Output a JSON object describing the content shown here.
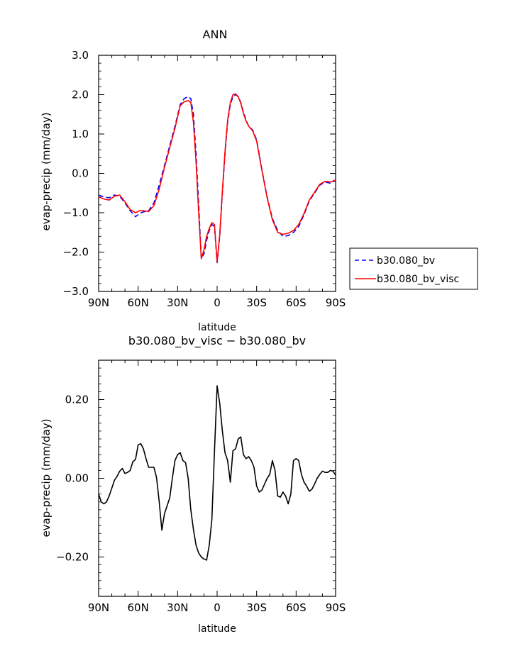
{
  "chart_data": [
    {
      "type": "line",
      "title": "ANN",
      "xlabel": "latitude",
      "ylabel": "evap-precip (mm/day)",
      "xlim": [
        90,
        -90
      ],
      "ylim": [
        -3.0,
        3.0
      ],
      "x_ticks": [
        {
          "value": 90,
          "label": "90N"
        },
        {
          "value": 60,
          "label": "60N"
        },
        {
          "value": 30,
          "label": "30N"
        },
        {
          "value": 0,
          "label": "0"
        },
        {
          "value": -30,
          "label": "30S"
        },
        {
          "value": -60,
          "label": "60S"
        },
        {
          "value": -90,
          "label": "90S"
        }
      ],
      "y_ticks": [
        {
          "value": 3.0,
          "label": "3.0"
        },
        {
          "value": 2.0,
          "label": "2.0"
        },
        {
          "value": 1.0,
          "label": "1.0"
        },
        {
          "value": 0.0,
          "label": "0.0"
        },
        {
          "value": -1.0,
          "label": "−1.0"
        },
        {
          "value": -2.0,
          "label": "−2.0"
        },
        {
          "value": -3.0,
          "label": "−3.0"
        }
      ],
      "grid": false,
      "legend_placement": "right",
      "x": [
        90,
        86,
        82,
        78,
        74,
        70,
        66,
        62,
        59,
        56,
        52,
        48,
        44,
        40,
        36,
        32,
        28,
        25,
        22,
        20,
        18,
        16,
        14,
        12,
        10,
        8,
        6,
        4,
        2,
        0,
        -2,
        -4,
        -6,
        -8,
        -10,
        -12,
        -14,
        -16,
        -18,
        -20,
        -22,
        -24,
        -27,
        -30,
        -34,
        -38,
        -42,
        -46,
        -50,
        -54,
        -58,
        -62,
        -66,
        -70,
        -74,
        -78,
        -82,
        -86,
        -90
      ],
      "series": [
        {
          "name": "b30.080_bv",
          "color": "#0000ff",
          "dash": "dashed",
          "values": [
            -0.55,
            -0.6,
            -0.62,
            -0.55,
            -0.58,
            -0.75,
            -0.95,
            -1.1,
            -1.02,
            -0.98,
            -0.95,
            -0.75,
            -0.3,
            0.2,
            0.7,
            1.2,
            1.75,
            1.9,
            1.95,
            1.9,
            1.5,
            0.5,
            -0.8,
            -2.15,
            -2.05,
            -1.7,
            -1.45,
            -1.3,
            -1.35,
            -2.27,
            -1.6,
            -0.5,
            0.5,
            1.3,
            1.75,
            1.95,
            2.0,
            1.95,
            1.8,
            1.55,
            1.35,
            1.2,
            1.1,
            0.85,
            0.1,
            -0.6,
            -1.15,
            -1.45,
            -1.6,
            -1.58,
            -1.5,
            -1.35,
            -1.05,
            -0.7,
            -0.5,
            -0.3,
            -0.22,
            -0.25,
            -0.18
          ]
        },
        {
          "name": "b30.080_bv_visc",
          "color": "#ff0000",
          "dash": "solid",
          "values": [
            -0.6,
            -0.65,
            -0.68,
            -0.58,
            -0.55,
            -0.72,
            -0.92,
            -1.0,
            -0.95,
            -0.95,
            -0.97,
            -0.82,
            -0.4,
            0.15,
            0.65,
            1.15,
            1.72,
            1.82,
            1.85,
            1.8,
            1.3,
            0.3,
            -1.0,
            -2.17,
            -1.95,
            -1.6,
            -1.4,
            -1.25,
            -1.3,
            -2.25,
            -1.55,
            -0.45,
            0.55,
            1.35,
            1.8,
            2.0,
            2.02,
            1.95,
            1.78,
            1.52,
            1.33,
            1.2,
            1.08,
            0.82,
            0.08,
            -0.62,
            -1.18,
            -1.5,
            -1.55,
            -1.52,
            -1.45,
            -1.3,
            -1.02,
            -0.68,
            -0.48,
            -0.28,
            -0.2,
            -0.22,
            -0.17
          ]
        }
      ]
    },
    {
      "type": "line",
      "title": "b30.080_bv_visc − b30.080_bv",
      "xlabel": "latitude",
      "ylabel": "evap-precip (mm/day)",
      "xlim": [
        90,
        -90
      ],
      "ylim": [
        -0.3,
        0.3
      ],
      "x_ticks": [
        {
          "value": 90,
          "label": "90N"
        },
        {
          "value": 60,
          "label": "60N"
        },
        {
          "value": 30,
          "label": "30N"
        },
        {
          "value": 0,
          "label": "0"
        },
        {
          "value": -30,
          "label": "30S"
        },
        {
          "value": -60,
          "label": "60S"
        },
        {
          "value": -90,
          "label": "90S"
        }
      ],
      "y_ticks": [
        {
          "value": 0.2,
          "label": "0.20"
        },
        {
          "value": 0.0,
          "label": "0.00"
        },
        {
          "value": -0.2,
          "label": "−0.20"
        }
      ],
      "grid": false,
      "x": [
        90,
        88,
        86,
        84,
        82,
        80,
        78,
        76,
        74,
        72,
        70,
        68,
        66,
        64,
        62,
        60,
        58,
        56,
        54,
        52,
        50,
        48,
        46,
        44,
        42,
        40,
        38,
        36,
        34,
        32,
        30,
        28,
        26,
        24,
        22,
        20,
        18,
        16,
        14,
        12,
        10,
        8,
        6,
        4,
        2,
        0,
        -2,
        -4,
        -6,
        -8,
        -10,
        -12,
        -14,
        -16,
        -18,
        -20,
        -22,
        -24,
        -26,
        -28,
        -30,
        -32,
        -34,
        -36,
        -38,
        -40,
        -42,
        -44,
        -46,
        -48,
        -50,
        -52,
        -54,
        -56,
        -58,
        -60,
        -62,
        -64,
        -66,
        -68,
        -70,
        -72,
        -74,
        -76,
        -78,
        -80,
        -82,
        -84,
        -86,
        -88,
        -90
      ],
      "series": [
        {
          "name": "",
          "color": "#000000",
          "dash": "solid",
          "values": [
            -0.04,
            -0.06,
            -0.065,
            -0.06,
            -0.045,
            -0.025,
            -0.005,
            0.005,
            0.018,
            0.025,
            0.012,
            0.015,
            0.02,
            0.042,
            0.048,
            0.085,
            0.088,
            0.075,
            0.05,
            0.028,
            0.028,
            0.028,
            0.002,
            -0.06,
            -0.132,
            -0.09,
            -0.07,
            -0.05,
            0.0,
            0.045,
            0.06,
            0.065,
            0.045,
            0.04,
            0.0,
            -0.08,
            -0.13,
            -0.17,
            -0.19,
            -0.2,
            -0.205,
            -0.208,
            -0.17,
            -0.105,
            0.07,
            0.235,
            0.19,
            0.12,
            0.065,
            0.045,
            -0.01,
            0.07,
            0.075,
            0.1,
            0.105,
            0.06,
            0.05,
            0.055,
            0.045,
            0.028,
            -0.02,
            -0.035,
            -0.03,
            -0.015,
            0.0,
            0.01,
            0.045,
            0.02,
            -0.045,
            -0.048,
            -0.035,
            -0.045,
            -0.065,
            -0.04,
            0.045,
            0.05,
            0.045,
            0.01,
            -0.01,
            -0.02,
            -0.033,
            -0.028,
            -0.015,
            0.0,
            0.01,
            0.018,
            0.015,
            0.015,
            0.02,
            0.018,
            0.008
          ]
        }
      ]
    }
  ]
}
